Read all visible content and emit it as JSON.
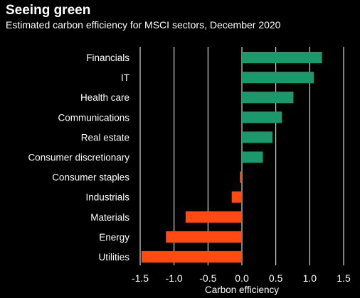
{
  "chart_data": {
    "type": "bar",
    "orientation": "horizontal",
    "title": "Seeing green",
    "subtitle": "Estimated carbon efficiency for MSCI sectors, December 2020",
    "xlabel": "Carbon efficiency",
    "ylabel": "",
    "xlim": [
      -1.5,
      1.5
    ],
    "xticks": [
      "-1.5",
      "-1.0",
      "-0.5",
      "0.0",
      "0.5",
      "1.0",
      "1.5"
    ],
    "grid": true,
    "categories": [
      "Financials",
      "IT",
      "Health care",
      "Communications",
      "Real estate",
      "Consumer discretionary",
      "Consumer staples",
      "Industrials",
      "Materials",
      "Energy",
      "Utilities"
    ],
    "values": [
      1.18,
      1.06,
      0.76,
      0.59,
      0.45,
      0.31,
      -0.03,
      -0.15,
      -0.83,
      -1.12,
      -1.48
    ],
    "colors": {
      "positive": "#1a9a6c",
      "negative": "#ff4a14",
      "background": "#000000",
      "grid": "#ffffff"
    }
  }
}
